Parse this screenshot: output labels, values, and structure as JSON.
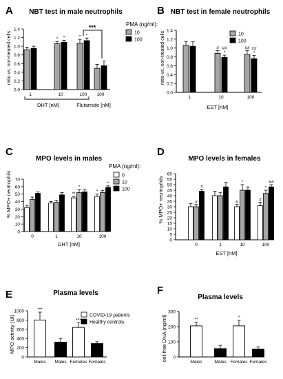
{
  "colors": {
    "gray": "#a6a6a6",
    "black": "#000000",
    "white": "#ffffff",
    "axis": "#000000"
  },
  "panels": {
    "A": {
      "letter": "A",
      "title": "NBT test in male neutrophils",
      "ylabel": "ratio vs. non-treated cells",
      "group_labels": [
        "DHT [nM]",
        "Flutamide [nM]"
      ],
      "legend_title": "PMA (ng/ml):",
      "sig_bracket": "***"
    },
    "B": {
      "letter": "B",
      "title": "NBT test in female neutrophils",
      "ylabel": "ratio vs. non-treated cells",
      "xlabel": "EST [nM]",
      "legend_title": "PMA (ng/ml):"
    },
    "C": {
      "letter": "C",
      "title": "MPO levels in males",
      "ylabel": "% MPO+ neutrophils",
      "xlabel": "DHT [nM]",
      "legend_title": "PMA (ng/ml):"
    },
    "D": {
      "letter": "D",
      "title": "MPO levels in females",
      "ylabel": "% MPO+ neutrophils",
      "xlabel": "EST [nM]"
    },
    "E": {
      "letter": "E",
      "title": "Plasma levels",
      "ylabel": "MPO activity (UI)"
    },
    "F": {
      "letter": "F",
      "title": "Plasma levels",
      "ylabel": "cell free DNA (ng/ml)"
    }
  },
  "chart_data": [
    {
      "id": "A",
      "type": "bar",
      "ylim": [
        0,
        1.4
      ],
      "yticks": [
        0.0,
        0.2,
        0.4,
        0.6,
        0.8,
        1.0,
        1.2,
        1.4
      ],
      "yticklabels": [
        "0.0",
        "0.2",
        "0.4",
        "0.6",
        "0.8",
        "1.0",
        "1.2",
        "1.4"
      ],
      "categories": [
        "1",
        "10",
        "100",
        "100"
      ],
      "series": [
        {
          "name": "10",
          "color": "gray",
          "values": [
            0.92,
            1.06,
            1.07,
            0.49
          ],
          "errors": [
            0.06,
            0.05,
            0.09,
            0.09
          ],
          "marks": [
            "",
            "*",
            "*",
            ""
          ]
        },
        {
          "name": "100",
          "color": "black",
          "values": [
            0.95,
            1.09,
            1.13,
            0.55
          ],
          "errors": [
            0.05,
            0.05,
            0.06,
            0.11
          ],
          "marks": [
            "",
            "*",
            "*",
            ""
          ]
        }
      ],
      "legend": [
        {
          "label": "10",
          "color": "gray"
        },
        {
          "label": "100",
          "color": "black"
        }
      ]
    },
    {
      "id": "B",
      "type": "bar",
      "ylim": [
        0,
        1.4
      ],
      "yticks": [
        0.0,
        0.2,
        0.4,
        0.6,
        0.8,
        1.0,
        1.2,
        1.4
      ],
      "yticklabels": [
        "0.0",
        "0.2",
        "0.4",
        "0.6",
        "0.8",
        "1.0",
        "1.2",
        "1.4"
      ],
      "categories": [
        "1",
        "10",
        "100"
      ],
      "series": [
        {
          "name": "10",
          "color": "gray",
          "values": [
            1.06,
            0.88,
            0.86
          ],
          "errors": [
            0.09,
            0.06,
            0.08
          ],
          "marks": [
            "",
            "#",
            "##"
          ]
        },
        {
          "name": "100",
          "color": "black",
          "values": [
            1.04,
            0.79,
            0.76
          ],
          "errors": [
            0.1,
            0.05,
            0.07
          ],
          "marks": [
            "",
            "##\n*",
            "##\n*"
          ]
        }
      ],
      "legend": [
        {
          "label": "10",
          "color": "gray"
        },
        {
          "label": "100",
          "color": "black"
        }
      ]
    },
    {
      "id": "C",
      "type": "bar",
      "ylim": [
        0,
        70
      ],
      "yticks": [
        0,
        10,
        20,
        30,
        40,
        50,
        60,
        70
      ],
      "categories": [
        "0",
        "1",
        "10",
        "100"
      ],
      "series": [
        {
          "name": "0",
          "color": "white",
          "values": [
            32,
            38,
            45,
            47
          ],
          "errors": [
            3,
            2,
            2,
            3
          ],
          "marks": [
            "",
            "",
            "**",
            "*"
          ]
        },
        {
          "name": "10",
          "color": "gray",
          "values": [
            43,
            39,
            52,
            52
          ],
          "errors": [
            3,
            3,
            4,
            3
          ],
          "marks": [
            "",
            "",
            "*",
            ""
          ]
        },
        {
          "name": "100",
          "color": "black",
          "values": [
            51,
            49,
            53,
            59
          ],
          "errors": [
            2,
            3,
            3,
            2
          ],
          "marks": [
            "",
            "",
            "",
            "*"
          ]
        }
      ],
      "legend": [
        {
          "label": "0",
          "color": "white"
        },
        {
          "label": "10",
          "color": "gray"
        },
        {
          "label": "100",
          "color": "black"
        }
      ]
    },
    {
      "id": "D",
      "type": "bar",
      "ylim": [
        0,
        60
      ],
      "yticks": [
        0,
        5,
        10,
        15,
        20,
        25,
        30,
        35,
        40,
        45,
        50,
        55,
        60
      ],
      "categories": [
        "0",
        "1",
        "10",
        "100"
      ],
      "series": [
        {
          "name": "0",
          "color": "white",
          "values": [
            30,
            40,
            30,
            31
          ],
          "errors": [
            3,
            4,
            2,
            3
          ],
          "marks": [
            "",
            "",
            "#",
            "#"
          ]
        },
        {
          "name": "10",
          "color": "gray",
          "values": [
            30,
            40,
            45,
            42
          ],
          "errors": [
            2,
            3,
            5,
            3
          ],
          "marks": [
            "#",
            "",
            "*",
            "*"
          ]
        },
        {
          "name": "100",
          "color": "black",
          "values": [
            44,
            48,
            45,
            48
          ],
          "errors": [
            2,
            4,
            3,
            2
          ],
          "marks": [
            "#",
            "",
            "",
            "##"
          ]
        }
      ]
    },
    {
      "id": "E",
      "type": "bar",
      "ylim": [
        0,
        1000
      ],
      "yticks": [
        0,
        200,
        400,
        600,
        800,
        1000
      ],
      "categories": [
        "Males",
        "Males",
        "Females",
        "Females"
      ],
      "colors": [
        "white",
        "black",
        "white",
        "black"
      ],
      "values": [
        800,
        320,
        640,
        290
      ],
      "errors": [
        170,
        80,
        100,
        40
      ],
      "marks": [
        "***",
        "",
        "***",
        ""
      ],
      "legend": [
        {
          "label": "COVID-19 patients",
          "color": "white"
        },
        {
          "label": "Healthy controls",
          "color": "black"
        }
      ]
    },
    {
      "id": "F",
      "type": "bar",
      "ylim": [
        0,
        300
      ],
      "yticks": [
        0,
        100,
        200,
        300
      ],
      "categories": [
        "Males",
        "Males",
        "Females",
        "Females"
      ],
      "colors": [
        "white",
        "black",
        "white",
        "black"
      ],
      "values": [
        205,
        55,
        205,
        52
      ],
      "errors": [
        25,
        22,
        38,
        15
      ],
      "marks": [
        "**",
        "",
        "*",
        ""
      ]
    }
  ]
}
